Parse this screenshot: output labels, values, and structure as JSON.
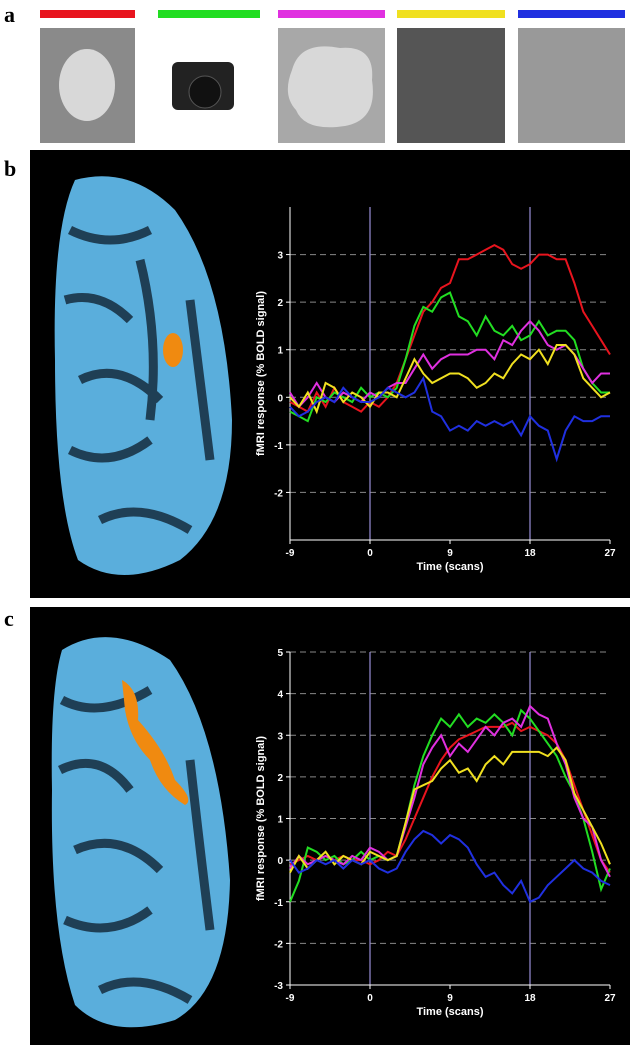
{
  "panel_labels": [
    "a",
    "b",
    "c"
  ],
  "chart_data": [
    {
      "type": "line",
      "xlabel": "Time (scans)",
      "ylabel": "fMRI response (% BOLD signal)",
      "x": [
        -9,
        -8,
        -7,
        -6,
        -5,
        -4,
        -3,
        -2,
        -1,
        0,
        1,
        2,
        3,
        4,
        5,
        6,
        7,
        8,
        9,
        10,
        11,
        12,
        13,
        14,
        15,
        16,
        17,
        18,
        19,
        20,
        21,
        22,
        23,
        24,
        25,
        26,
        27
      ],
      "xlim": [
        -9,
        27
      ],
      "xticks": [
        -9,
        0,
        9,
        18,
        27
      ],
      "ylim": [
        -3,
        4
      ],
      "yticks": [
        -2,
        -1,
        0,
        1,
        2,
        3
      ],
      "grid": true,
      "vlines": [
        0,
        18
      ],
      "series": [
        {
          "color": "#e8141e",
          "values": [
            -0.1,
            -0.2,
            -0.3,
            0.1,
            -0.2,
            0.2,
            -0.1,
            -0.2,
            -0.3,
            -0.1,
            -0.2,
            0.0,
            0.3,
            0.8,
            1.3,
            1.8,
            2.0,
            2.3,
            2.4,
            2.9,
            2.9,
            3.0,
            3.1,
            3.2,
            3.1,
            2.8,
            2.7,
            2.8,
            3.0,
            3.0,
            2.9,
            2.9,
            2.4,
            1.8,
            1.5,
            1.2,
            0.9
          ]
        },
        {
          "color": "#22dd22",
          "values": [
            -0.3,
            -0.4,
            -0.5,
            0.0,
            -0.1,
            0.1,
            0.0,
            -0.1,
            0.2,
            0.0,
            0.1,
            0.0,
            0.2,
            0.8,
            1.5,
            1.9,
            1.8,
            2.1,
            2.2,
            1.7,
            1.6,
            1.3,
            1.7,
            1.4,
            1.3,
            1.5,
            1.2,
            1.3,
            1.6,
            1.3,
            1.4,
            1.4,
            1.2,
            0.6,
            0.3,
            0.1,
            0.1
          ]
        },
        {
          "color": "#e030e0",
          "values": [
            0.1,
            -0.2,
            0.0,
            0.3,
            0.0,
            -0.1,
            0.1,
            0.0,
            -0.1,
            0.1,
            0.0,
            0.2,
            0.3,
            0.3,
            0.6,
            0.9,
            0.6,
            0.8,
            0.9,
            0.9,
            0.9,
            1.0,
            1.0,
            0.8,
            1.2,
            1.1,
            1.4,
            1.6,
            1.4,
            1.1,
            1.0,
            1.1,
            0.9,
            0.6,
            0.3,
            0.5,
            0.5
          ]
        },
        {
          "color": "#f0e020",
          "values": [
            0.0,
            -0.2,
            0.1,
            -0.3,
            0.3,
            0.2,
            -0.1,
            0.1,
            0.0,
            -0.2,
            0.1,
            0.1,
            0.0,
            0.4,
            0.8,
            0.5,
            0.3,
            0.4,
            0.5,
            0.5,
            0.4,
            0.2,
            0.3,
            0.5,
            0.4,
            0.7,
            0.9,
            0.8,
            1.0,
            0.7,
            1.1,
            1.1,
            0.9,
            0.4,
            0.2,
            0.0,
            0.1
          ]
        },
        {
          "color": "#2030e0",
          "values": [
            -0.2,
            -0.4,
            -0.3,
            -0.1,
            0.0,
            -0.1,
            0.2,
            0.0,
            -0.1,
            -0.1,
            0.0,
            0.2,
            0.1,
            0.0,
            0.1,
            0.4,
            -0.3,
            -0.4,
            -0.7,
            -0.6,
            -0.7,
            -0.5,
            -0.6,
            -0.5,
            -0.6,
            -0.5,
            -0.8,
            -0.4,
            -0.6,
            -0.7,
            -1.3,
            -0.7,
            -0.4,
            -0.5,
            -0.5,
            -0.4,
            -0.4
          ]
        }
      ]
    },
    {
      "type": "line",
      "xlabel": "Time (scans)",
      "ylabel": "fMRI response (% BOLD signal)",
      "x": [
        -9,
        -8,
        -7,
        -6,
        -5,
        -4,
        -3,
        -2,
        -1,
        0,
        1,
        2,
        3,
        4,
        5,
        6,
        7,
        8,
        9,
        10,
        11,
        12,
        13,
        14,
        15,
        16,
        17,
        18,
        19,
        20,
        21,
        22,
        23,
        24,
        25,
        26,
        27
      ],
      "xlim": [
        -9,
        27
      ],
      "xticks": [
        -9,
        0,
        9,
        18,
        27
      ],
      "ylim": [
        -3,
        5
      ],
      "yticks": [
        -3,
        -2,
        -1,
        0,
        1,
        2,
        3,
        4,
        5
      ],
      "grid": true,
      "vlines": [
        0,
        18
      ],
      "series": [
        {
          "color": "#e8141e",
          "values": [
            -0.1,
            0.0,
            0.1,
            0.0,
            0.1,
            0.0,
            0.1,
            0.0,
            0.0,
            -0.1,
            0.0,
            0.2,
            0.1,
            0.5,
            1.0,
            1.5,
            2.0,
            2.4,
            2.7,
            2.9,
            3.0,
            3.1,
            3.2,
            3.2,
            3.2,
            3.3,
            3.1,
            3.2,
            3.1,
            3.0,
            2.8,
            2.4,
            1.8,
            1.2,
            0.6,
            0.0,
            -0.3
          ]
        },
        {
          "color": "#22dd22",
          "values": [
            -1.0,
            -0.5,
            0.3,
            0.2,
            0.0,
            0.1,
            -0.1,
            0.0,
            0.2,
            0.0,
            0.1,
            0.0,
            0.1,
            0.9,
            1.8,
            2.5,
            3.0,
            3.4,
            3.2,
            3.5,
            3.2,
            3.4,
            3.3,
            3.5,
            3.3,
            3.0,
            3.6,
            3.4,
            3.1,
            2.8,
            2.5,
            2.0,
            1.6,
            1.0,
            0.2,
            -0.7,
            -0.2
          ]
        },
        {
          "color": "#e030e0",
          "values": [
            -0.2,
            0.1,
            -0.1,
            0.0,
            0.1,
            0.0,
            -0.1,
            0.1,
            0.0,
            0.3,
            0.2,
            0.0,
            0.1,
            0.8,
            1.5,
            2.3,
            2.7,
            3.0,
            2.5,
            2.8,
            2.6,
            2.9,
            3.2,
            3.0,
            3.3,
            3.4,
            3.2,
            3.7,
            3.5,
            3.4,
            2.8,
            2.3,
            1.5,
            1.0,
            0.8,
            0.0,
            -0.4
          ]
        },
        {
          "color": "#f0e020",
          "values": [
            -0.3,
            0.1,
            -0.2,
            0.0,
            0.2,
            -0.1,
            0.1,
            0.0,
            -0.1,
            0.2,
            0.1,
            0.0,
            0.1,
            0.9,
            1.7,
            1.8,
            1.9,
            2.2,
            2.4,
            2.1,
            2.2,
            1.9,
            2.3,
            2.5,
            2.3,
            2.6,
            2.6,
            2.6,
            2.6,
            2.5,
            2.7,
            2.4,
            1.6,
            1.2,
            0.8,
            0.4,
            -0.1
          ]
        },
        {
          "color": "#2030e0",
          "values": [
            0.0,
            -0.3,
            -0.2,
            0.0,
            -0.1,
            0.0,
            -0.2,
            0.0,
            -0.1,
            0.0,
            -0.2,
            -0.3,
            -0.2,
            0.2,
            0.5,
            0.7,
            0.6,
            0.4,
            0.6,
            0.5,
            0.3,
            -0.1,
            -0.4,
            -0.3,
            -0.6,
            -0.8,
            -0.5,
            -1.0,
            -0.9,
            -0.6,
            -0.4,
            -0.2,
            0.0,
            -0.2,
            -0.3,
            -0.5,
            -0.6
          ]
        }
      ]
    }
  ]
}
